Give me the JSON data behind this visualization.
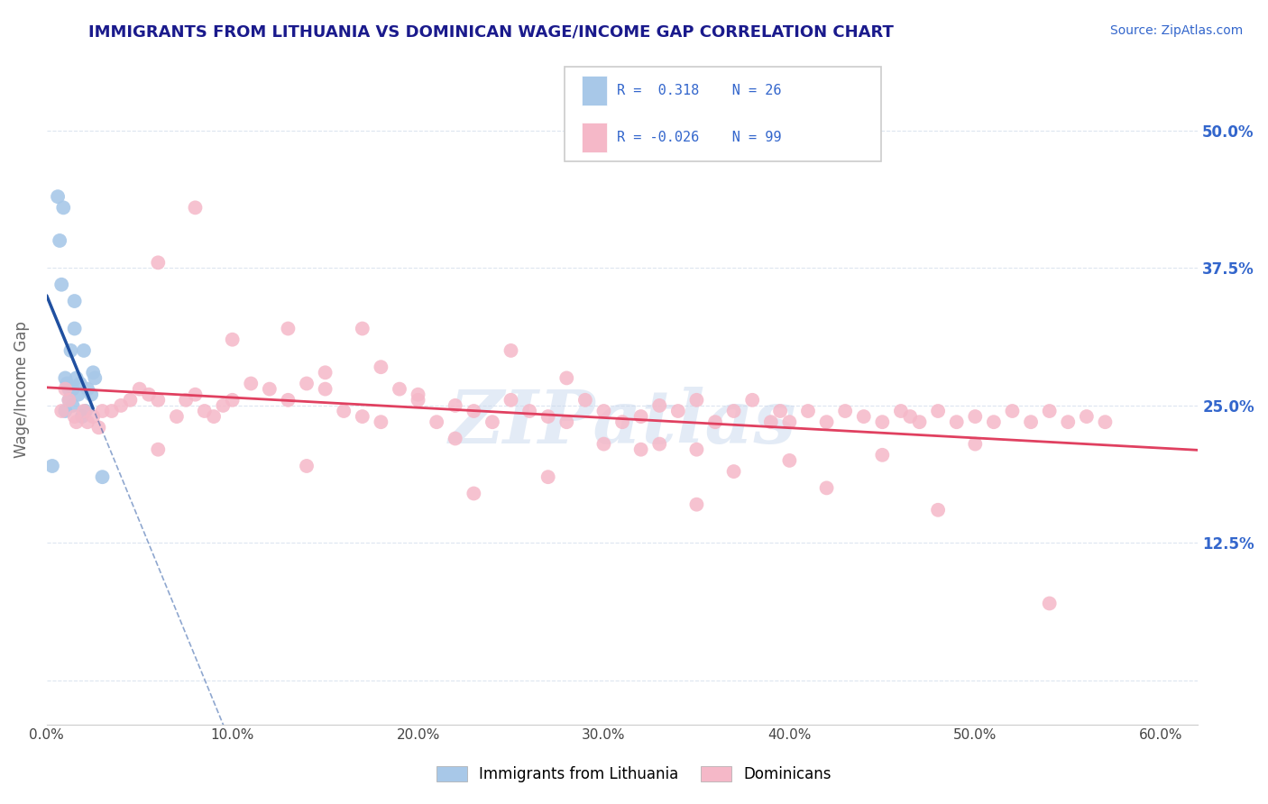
{
  "title": "IMMIGRANTS FROM LITHUANIA VS DOMINICAN WAGE/INCOME GAP CORRELATION CHART",
  "source": "Source: ZipAtlas.com",
  "ylabel": "Wage/Income Gap",
  "ytick_vals": [
    0.0,
    0.125,
    0.25,
    0.375,
    0.5
  ],
  "ytick_labels": [
    "",
    "12.5%",
    "25.0%",
    "37.5%",
    "50.0%"
  ],
  "xtick_vals": [
    0.0,
    0.1,
    0.2,
    0.3,
    0.4,
    0.5,
    0.6
  ],
  "xtick_labels": [
    "0.0%",
    "10.0%",
    "20.0%",
    "30.0%",
    "40.0%",
    "50.0%",
    "60.0%"
  ],
  "xlim": [
    0.0,
    0.62
  ],
  "ylim": [
    -0.04,
    0.57
  ],
  "blue_color": "#a8c8e8",
  "pink_color": "#f5b8c8",
  "trend_blue_color": "#2050a0",
  "trend_pink_color": "#e04060",
  "grid_color": "#dde5f0",
  "title_color": "#1a1a8c",
  "source_color": "#3366cc",
  "axis_label_color": "#666666",
  "right_tick_color": "#3366cc",
  "watermark_color": "#c8d8ee",
  "watermark": "ZIPatlas",
  "legend_r1": "R =  0.318",
  "legend_n1": "N = 26",
  "legend_r2": "R = -0.026",
  "legend_n2": "N = 99",
  "lithuania_x": [
    0.003,
    0.006,
    0.007,
    0.008,
    0.009,
    0.01,
    0.01,
    0.011,
    0.012,
    0.012,
    0.013,
    0.014,
    0.014,
    0.015,
    0.015,
    0.016,
    0.017,
    0.018,
    0.019,
    0.02,
    0.021,
    0.022,
    0.024,
    0.025,
    0.026,
    0.03
  ],
  "lithuania_y": [
    0.195,
    0.44,
    0.4,
    0.36,
    0.43,
    0.275,
    0.245,
    0.27,
    0.265,
    0.255,
    0.3,
    0.265,
    0.25,
    0.345,
    0.32,
    0.275,
    0.26,
    0.27,
    0.24,
    0.3,
    0.245,
    0.265,
    0.26,
    0.28,
    0.275,
    0.185
  ],
  "dominican_x": [
    0.008,
    0.01,
    0.012,
    0.015,
    0.016,
    0.02,
    0.022,
    0.025,
    0.028,
    0.03,
    0.035,
    0.04,
    0.045,
    0.05,
    0.055,
    0.06,
    0.07,
    0.075,
    0.08,
    0.085,
    0.09,
    0.095,
    0.1,
    0.11,
    0.12,
    0.13,
    0.14,
    0.15,
    0.16,
    0.17,
    0.18,
    0.19,
    0.2,
    0.21,
    0.22,
    0.23,
    0.24,
    0.25,
    0.26,
    0.27,
    0.28,
    0.29,
    0.3,
    0.31,
    0.32,
    0.33,
    0.34,
    0.35,
    0.36,
    0.37,
    0.38,
    0.39,
    0.395,
    0.4,
    0.41,
    0.42,
    0.43,
    0.44,
    0.45,
    0.46,
    0.465,
    0.47,
    0.48,
    0.49,
    0.5,
    0.51,
    0.52,
    0.53,
    0.54,
    0.55,
    0.56,
    0.57,
    0.06,
    0.1,
    0.15,
    0.2,
    0.25,
    0.3,
    0.35,
    0.4,
    0.17,
    0.22,
    0.27,
    0.32,
    0.37,
    0.28,
    0.33,
    0.13,
    0.18,
    0.23,
    0.35,
    0.42,
    0.48,
    0.54,
    0.08,
    0.14,
    0.45,
    0.5,
    0.06
  ],
  "dominican_y": [
    0.245,
    0.265,
    0.255,
    0.24,
    0.235,
    0.245,
    0.235,
    0.24,
    0.23,
    0.245,
    0.245,
    0.25,
    0.255,
    0.265,
    0.26,
    0.255,
    0.24,
    0.255,
    0.26,
    0.245,
    0.24,
    0.25,
    0.255,
    0.27,
    0.265,
    0.255,
    0.27,
    0.265,
    0.245,
    0.24,
    0.235,
    0.265,
    0.255,
    0.235,
    0.25,
    0.245,
    0.235,
    0.255,
    0.245,
    0.24,
    0.235,
    0.255,
    0.245,
    0.235,
    0.24,
    0.25,
    0.245,
    0.255,
    0.235,
    0.245,
    0.255,
    0.235,
    0.245,
    0.235,
    0.245,
    0.235,
    0.245,
    0.24,
    0.235,
    0.245,
    0.24,
    0.235,
    0.245,
    0.235,
    0.24,
    0.235,
    0.245,
    0.235,
    0.245,
    0.235,
    0.24,
    0.235,
    0.38,
    0.31,
    0.28,
    0.26,
    0.3,
    0.215,
    0.21,
    0.2,
    0.32,
    0.22,
    0.185,
    0.21,
    0.19,
    0.275,
    0.215,
    0.32,
    0.285,
    0.17,
    0.16,
    0.175,
    0.155,
    0.07,
    0.43,
    0.195,
    0.205,
    0.215,
    0.21
  ]
}
